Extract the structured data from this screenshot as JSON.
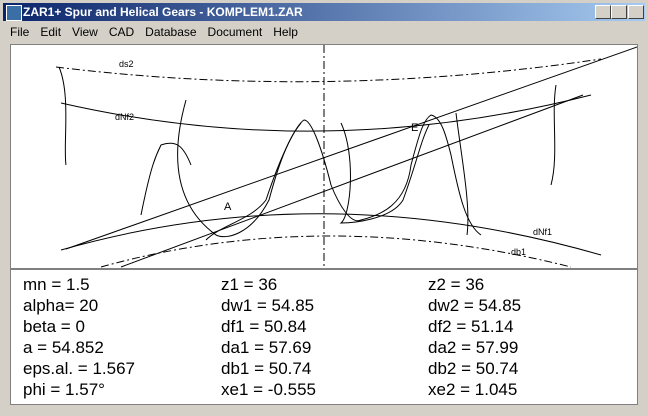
{
  "window": {
    "title": "ZAR1+  Spur and Helical Gears  -  KOMPLEM1.ZAR"
  },
  "menu": [
    "File",
    "Edit",
    "View",
    "CAD",
    "Database",
    "Document",
    "Help"
  ],
  "drawing_labels": {
    "ds2": "ds2",
    "dNf2": "dNf2",
    "dNf1": "dNf1",
    "db1": "db1",
    "A": "A",
    "E": "E"
  },
  "parameters": [
    [
      "mn = 1.5",
      "z1  = 36",
      "z2  = 36"
    ],
    [
      "alpha= 20",
      "dw1 = 54.85",
      "dw2 = 54.85"
    ],
    [
      "beta = 0",
      "df1 = 50.84",
      "df2 = 51.14"
    ],
    [
      "a = 54.852",
      "da1 = 57.69",
      "da2 = 57.99"
    ],
    [
      "eps.al. = 1.567",
      "db1 = 50.74",
      "db2 = 50.74"
    ],
    [
      "phi = 1.57°",
      "xe1 = -0.555",
      "xe2 = 1.045"
    ]
  ]
}
